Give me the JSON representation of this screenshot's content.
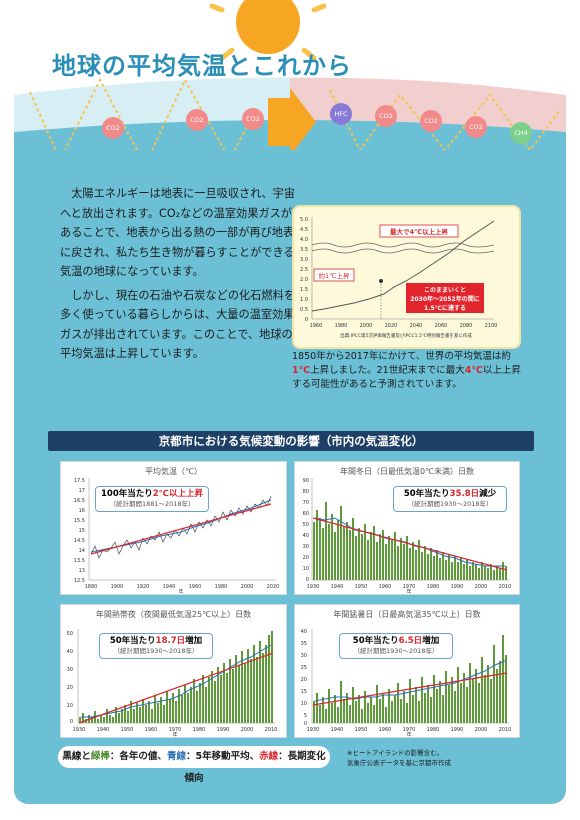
{
  "title": "地球の平均気温とこれから",
  "gases_left": [
    "CO2",
    "CO2",
    "CO2"
  ],
  "gases_right": [
    "HFC",
    "CO2",
    "CO2",
    "CO2",
    "CH4"
  ],
  "body": {
    "para1": "太陽エネルギーは地表に一旦吸収され、宇宙へと放出されます。CO₂などの温室効果ガスがあることで、地表から出る熱の一部が再び地表に戻され、私たち生き物が暮らすことができる気温の地球になっています。",
    "para2": "しかし、現在の石油や石炭などの化石燃料を多く使っている暮らしからは、大量の温室効果ガスが排出されています。このことで、地球の平均気温は上昇しています。"
  },
  "mini_chart": {
    "label_max": "最大で4℃以上上昇",
    "label_now": "約1℃上昇",
    "label_future_1": "このままいくと",
    "label_future_2": "2030年～2052年の間に",
    "label_future_3": "1.5℃に達する",
    "x_ticks": [
      "1960",
      "1980",
      "2000",
      "2020",
      "2040",
      "2060",
      "2080",
      "2100"
    ],
    "y_ticks": [
      "5.0",
      "4.5",
      "4.0",
      "3.5",
      "3.0",
      "2.5",
      "2.0",
      "1.5",
      "1.0",
      "0.5",
      "0"
    ],
    "source": "出典:IPCC第5次評価報告書及びIPCC1.5℃特別報告書を基に作成"
  },
  "mini_note": {
    "a": "1850年から2017年にかけて、世界の平均気温は約",
    "b": "1℃",
    "c": "上昇しました。21世紀末までに最大",
    "d": "4℃",
    "e": "以上上昇する可能性があると予測されています。"
  },
  "section_heading": "京都市における気候変動の影響（市内の気温変化）",
  "panels": {
    "p1": {
      "title": "平均気温（℃）",
      "callout_a": "100年当たり",
      "callout_b": "2℃以上上昇",
      "callout_sub": "（統計期間1881～2018年）",
      "y_ticks": [
        "17.5",
        "17",
        "16.5",
        "16",
        "15.5",
        "15",
        "14.5",
        "14",
        "13.5",
        "13",
        "12.5"
      ],
      "x_ticks": [
        "1880",
        "1900",
        "1920",
        "1940",
        "1960",
        "1980",
        "2000",
        "2020"
      ],
      "x_unit": "年"
    },
    "p2": {
      "title": "年間冬日（日最低気温0℃未満）日数",
      "callout_a": "50年当たり",
      "callout_b": "35.8日",
      "callout_c": "減少",
      "callout_sub": "（統計期間1930～2018年）",
      "y_ticks": [
        "90",
        "80",
        "70",
        "60",
        "50",
        "40",
        "30",
        "20",
        "10",
        "0"
      ],
      "x_ticks": [
        "1930",
        "1940",
        "1950",
        "1960",
        "1970",
        "1980",
        "1990",
        "2000",
        "2010"
      ],
      "x_unit": "年"
    },
    "p3": {
      "title": "年間熱帯夜（夜間最低気温25℃以上）日数",
      "callout_a": "50年当たり",
      "callout_b": "18.7日",
      "callout_c": "増加",
      "callout_sub": "（統計期間1930～2018年）",
      "y_ticks": [
        "50",
        "40",
        "30",
        "20",
        "10",
        "0"
      ],
      "x_ticks": [
        "1930",
        "1940",
        "1950",
        "1960",
        "1970",
        "1980",
        "1990",
        "2000",
        "2010"
      ],
      "x_unit": "年"
    },
    "p4": {
      "title": "年間猛暑日（日最高気温35℃以上）日数",
      "callout_a": "50年当たり",
      "callout_b": "6.5日",
      "callout_c": "増加",
      "callout_sub": "（統計期間1930～2018年）",
      "y_ticks": [
        "40",
        "35",
        "30",
        "25",
        "20",
        "15",
        "10",
        "5",
        "0"
      ],
      "x_ticks": [
        "1930",
        "1940",
        "1950",
        "1960",
        "1970",
        "1980",
        "1990",
        "2000",
        "2010"
      ],
      "x_unit": "年"
    }
  },
  "legend": {
    "black": "黒線",
    "and": "と",
    "green": "緑棒",
    "t1": "：各年の値、",
    "blue": "青線",
    "t2": "：5年移動平均、",
    "red": "赤線",
    "t3": "：長期変化傾向"
  },
  "footnote": [
    "※ヒートアイランドの影響含む。",
    "気象庁公表データを基に京都市作成"
  ],
  "colors": {
    "sky": "#6cc0d6",
    "title": "#2a8fb7",
    "heading": "#1e3f66",
    "red": "#d9262e",
    "bar": "#5e9a3a"
  }
}
